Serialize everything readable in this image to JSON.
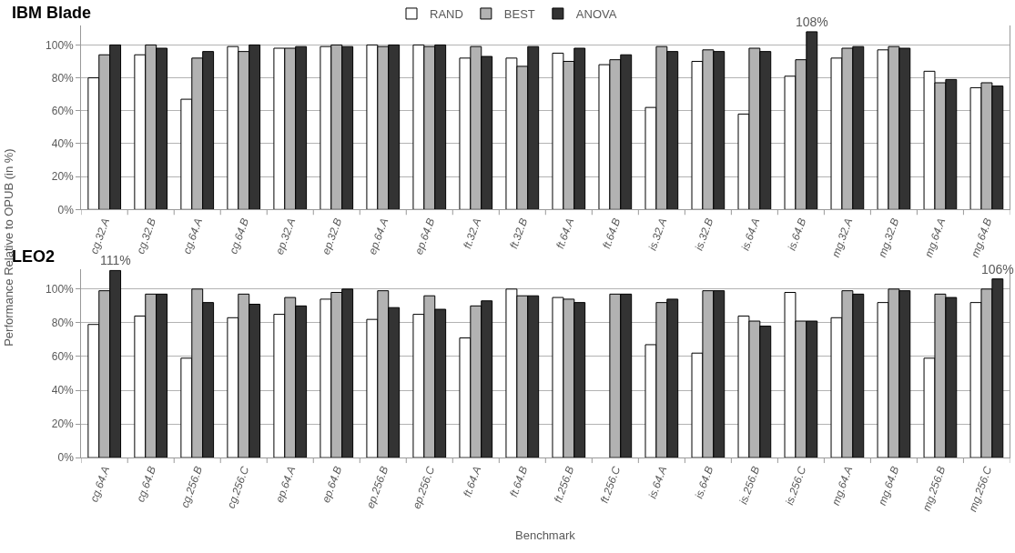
{
  "chart_data": [
    {
      "type": "bar",
      "title": "IBM Blade",
      "ylabel": "Performance Relative to OPUB (in %)",
      "categories": [
        "cg.32.A",
        "cg.32.B",
        "cg.64.A",
        "cg.64.B",
        "ep.32.A",
        "ep.32.B",
        "ep.64.A",
        "ep.64.B",
        "ft.32.A",
        "ft.32.B",
        "ft.64.A",
        "ft.64.B",
        "is.32.A",
        "is.32.B",
        "is.64.A",
        "is.64.B",
        "mg.32.A",
        "mg.32.B",
        "mg.64.A",
        "mg.64.B"
      ],
      "series": [
        {
          "name": "RAND",
          "color": "#ffffff",
          "values": [
            80,
            94,
            67,
            99,
            98,
            99,
            100,
            100,
            92,
            92,
            95,
            88,
            62,
            90,
            58,
            81,
            92,
            97,
            84,
            74
          ]
        },
        {
          "name": "BEST",
          "color": "#b2b2b2",
          "values": [
            94,
            100,
            92,
            96,
            98,
            100,
            99,
            99,
            99,
            87,
            90,
            91,
            99,
            97,
            98,
            91,
            98,
            99,
            77,
            77
          ]
        },
        {
          "name": "ANOVA",
          "color": "#333333",
          "values": [
            100,
            98,
            96,
            100,
            99,
            99,
            100,
            100,
            93,
            99,
            98,
            94,
            96,
            96,
            96,
            108,
            99,
            98,
            79,
            75
          ],
          "value_labels": [
            null,
            null,
            null,
            null,
            null,
            null,
            null,
            null,
            null,
            null,
            null,
            null,
            null,
            null,
            null,
            "108%",
            null,
            null,
            null,
            null
          ]
        }
      ],
      "ylim": [
        0,
        112
      ],
      "yticks": [
        {
          "value": 0,
          "label": "0%"
        },
        {
          "value": 20,
          "label": "20%"
        },
        {
          "value": 40,
          "label": "40%"
        },
        {
          "value": 60,
          "label": "60%"
        },
        {
          "value": 80,
          "label": "80%"
        },
        {
          "value": 100,
          "label": "100%"
        }
      ],
      "grid": "y",
      "legend": "top"
    },
    {
      "type": "bar",
      "title": "LEO2",
      "xlabel": "Benchmark",
      "categories": [
        "cg.64.A",
        "cg.64.B",
        "cg.256.B",
        "cg.256.C",
        "ep.64.A",
        "ep.64.B",
        "ep.256.B",
        "ep.256.C",
        "ft.64.A",
        "ft.64.B",
        "ft.256.B",
        "ft.256.C",
        "is.64.A",
        "is.64.B",
        "is.256.B",
        "is.256.C",
        "mg.64.A",
        "mg.64.B",
        "mg.256.B",
        "mg.256.C"
      ],
      "series": [
        {
          "color": "#ffffff",
          "values": [
            79,
            84,
            59,
            83,
            85,
            94,
            82,
            85,
            71,
            100,
            95,
            null,
            67,
            62,
            84,
            98,
            83,
            92,
            59,
            92
          ]
        },
        {
          "color": "#b2b2b2",
          "values": [
            99,
            97,
            100,
            97,
            95,
            98,
            99,
            96,
            90,
            96,
            94,
            97,
            92,
            99,
            81,
            81,
            99,
            100,
            97,
            100
          ]
        },
        {
          "color": "#333333",
          "values": [
            111,
            97,
            92,
            91,
            90,
            100,
            89,
            88,
            93,
            96,
            92,
            97,
            94,
            99,
            78,
            81,
            97,
            99,
            95,
            106
          ],
          "value_labels": [
            "111%",
            null,
            null,
            null,
            null,
            null,
            null,
            null,
            null,
            null,
            null,
            null,
            null,
            null,
            null,
            null,
            null,
            null,
            null,
            "106%"
          ]
        }
      ],
      "ylim": [
        0,
        112
      ],
      "yticks": [
        {
          "value": 0,
          "label": "0%"
        },
        {
          "value": 20,
          "label": "20%"
        },
        {
          "value": 40,
          "label": "40%"
        },
        {
          "value": 60,
          "label": "60%"
        },
        {
          "value": 80,
          "label": "80%"
        },
        {
          "value": 100,
          "label": "100%"
        }
      ],
      "grid": "y",
      "legend": false
    }
  ]
}
